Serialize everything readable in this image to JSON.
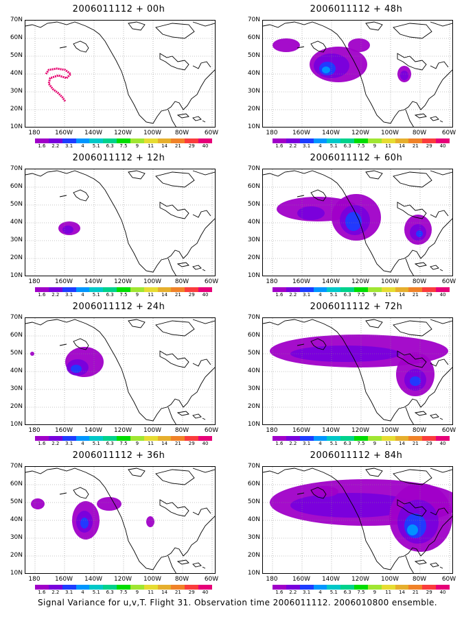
{
  "panels": [
    {
      "title": "2006011112 + 00h"
    },
    {
      "title": "2006011112 + 48h"
    },
    {
      "title": "2006011112 + 12h"
    },
    {
      "title": "2006011112 + 60h"
    },
    {
      "title": "2006011112 + 24h"
    },
    {
      "title": "2006011112 + 72h"
    },
    {
      "title": "2006011112 + 36h"
    },
    {
      "title": "2006011112 + 84h"
    }
  ],
  "y_ticks": [
    "70N",
    "60N",
    "50N",
    "40N",
    "30N",
    "20N",
    "10N"
  ],
  "x_ticks": [
    "180",
    "160W",
    "140W",
    "120W",
    "100W",
    "80W",
    "60W"
  ],
  "colorbar": {
    "labels": [
      "1.6",
      "2.2",
      "3.1",
      "4",
      "5.1",
      "6.3",
      "7.5",
      "9",
      "11",
      "14",
      "21",
      "29",
      "40"
    ],
    "colors": [
      "#a000c8",
      "#7800dc",
      "#1e3cff",
      "#0096ff",
      "#00c8c8",
      "#00d28c",
      "#00dc00",
      "#a0e632",
      "#e6dc32",
      "#e6af2d",
      "#f08228",
      "#fa3c3c",
      "#e60078"
    ]
  },
  "caption": "Signal Variance for u,v,T. Flight 31. Observation time 2006011112. 2006010800 ensemble."
}
